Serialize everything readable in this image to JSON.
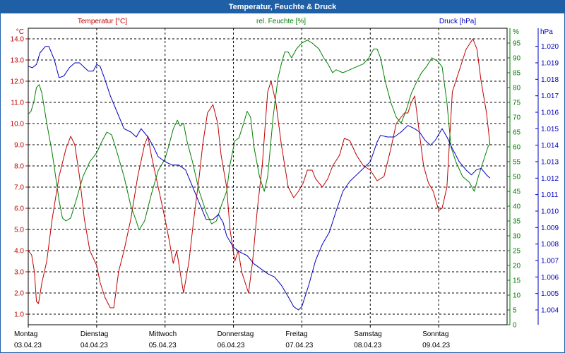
{
  "window": {
    "title": "Temperatur, Feuchte & Druck"
  },
  "colors": {
    "temperature": "#c00000",
    "humidity": "#008000",
    "pressure": "#0000c0",
    "title_bar": "#1f5fa6",
    "grid": "#000000"
  },
  "chart_data": {
    "type": "line",
    "title": "Temperatur, Feuchte & Druck",
    "x_range_days": [
      0,
      7
    ],
    "days": [
      {
        "name": "Montag",
        "date": "03.04.23"
      },
      {
        "name": "Dienstag",
        "date": "04.04.23"
      },
      {
        "name": "Mittwoch",
        "date": "05.04.23"
      },
      {
        "name": "Donnerstag",
        "date": "06.04.23"
      },
      {
        "name": "Freitag",
        "date": "07.04.23"
      },
      {
        "name": "Samstag",
        "date": "08.04.23"
      },
      {
        "name": "Sonntag",
        "date": "09.04.23"
      }
    ],
    "axes": {
      "temperature": {
        "label": "Temperatur [°C]",
        "unit": "°C",
        "range": [
          0.5,
          14.5
        ],
        "ticks": [
          "1.0",
          "2.0",
          "3.0",
          "4.0",
          "5.0",
          "6.0",
          "7.0",
          "8.0",
          "9.0",
          "10.0",
          "11.0",
          "12.0",
          "13.0",
          "14.0"
        ]
      },
      "humidity": {
        "label": "rel. Feuchte [%]",
        "unit": "%",
        "range": [
          0,
          100
        ],
        "ticks": [
          "0",
          "5",
          "10",
          "15",
          "20",
          "25",
          "30",
          "35",
          "40",
          "45",
          "50",
          "55",
          "60",
          "65",
          "70",
          "75",
          "80",
          "85",
          "90",
          "95"
        ]
      },
      "pressure": {
        "label": "Druck [hPa]",
        "unit": "hPa",
        "range": [
          1.0031,
          1.0211
        ],
        "ticks": [
          "1.004",
          "1.005",
          "1.006",
          "1.007",
          "1.008",
          "1.009",
          "1.010",
          "1.011",
          "1.012",
          "1.013",
          "1.014",
          "1.015",
          "1.016",
          "1.017",
          "1.018",
          "1.019",
          "1.020"
        ]
      }
    },
    "series": [
      {
        "name": "Temperatur",
        "axis": "temperature",
        "points": [
          [
            0,
            4.0
          ],
          [
            0.05,
            3.8
          ],
          [
            0.09,
            3.0
          ],
          [
            0.12,
            1.6
          ],
          [
            0.15,
            1.5
          ],
          [
            0.2,
            2.5
          ],
          [
            0.27,
            3.5
          ],
          [
            0.35,
            5.5
          ],
          [
            0.45,
            7.5
          ],
          [
            0.55,
            8.8
          ],
          [
            0.62,
            9.4
          ],
          [
            0.68,
            9.0
          ],
          [
            0.75,
            7.5
          ],
          [
            0.82,
            5.5
          ],
          [
            0.9,
            4.0
          ],
          [
            1.0,
            3.3
          ],
          [
            1.05,
            2.5
          ],
          [
            1.12,
            1.8
          ],
          [
            1.2,
            1.3
          ],
          [
            1.25,
            1.3
          ],
          [
            1.32,
            3.0
          ],
          [
            1.4,
            4.0
          ],
          [
            1.5,
            5.5
          ],
          [
            1.6,
            7.5
          ],
          [
            1.7,
            9.0
          ],
          [
            1.75,
            9.4
          ],
          [
            1.8,
            8.5
          ],
          [
            1.9,
            7.0
          ],
          [
            2.0,
            5.5
          ],
          [
            2.06,
            4.5
          ],
          [
            2.12,
            3.4
          ],
          [
            2.17,
            4.0
          ],
          [
            2.22,
            3.0
          ],
          [
            2.27,
            2.0
          ],
          [
            2.35,
            3.5
          ],
          [
            2.42,
            5.5
          ],
          [
            2.5,
            7.5
          ],
          [
            2.55,
            9.0
          ],
          [
            2.62,
            10.5
          ],
          [
            2.7,
            10.9
          ],
          [
            2.77,
            10.0
          ],
          [
            2.82,
            8.5
          ],
          [
            2.9,
            7.0
          ],
          [
            2.95,
            5.0
          ],
          [
            3.02,
            3.5
          ],
          [
            3.07,
            4.0
          ],
          [
            3.12,
            3.0
          ],
          [
            3.17,
            2.5
          ],
          [
            3.22,
            2.0
          ],
          [
            3.28,
            3.5
          ],
          [
            3.35,
            6.0
          ],
          [
            3.42,
            8.0
          ],
          [
            3.5,
            11.5
          ],
          [
            3.55,
            12.0
          ],
          [
            3.62,
            11.0
          ],
          [
            3.7,
            9.0
          ],
          [
            3.8,
            7.0
          ],
          [
            3.88,
            6.5
          ],
          [
            3.95,
            6.8
          ],
          [
            4.02,
            7.2
          ],
          [
            4.08,
            7.8
          ],
          [
            4.15,
            7.8
          ],
          [
            4.2,
            7.4
          ],
          [
            4.3,
            7.0
          ],
          [
            4.38,
            7.4
          ],
          [
            4.45,
            8.0
          ],
          [
            4.55,
            8.5
          ],
          [
            4.62,
            9.3
          ],
          [
            4.7,
            9.2
          ],
          [
            4.8,
            8.5
          ],
          [
            4.9,
            8.0
          ],
          [
            5.0,
            7.8
          ],
          [
            5.1,
            7.3
          ],
          [
            5.2,
            7.5
          ],
          [
            5.3,
            8.8
          ],
          [
            5.38,
            10.0
          ],
          [
            5.45,
            10.3
          ],
          [
            5.5,
            10.5
          ],
          [
            5.55,
            10.5
          ],
          [
            5.6,
            11.0
          ],
          [
            5.65,
            11.3
          ],
          [
            5.72,
            9.5
          ],
          [
            5.78,
            8.0
          ],
          [
            5.85,
            7.2
          ],
          [
            5.92,
            6.8
          ],
          [
            6.0,
            5.9
          ],
          [
            6.05,
            6.0
          ],
          [
            6.12,
            7.0
          ],
          [
            6.2,
            11.5
          ],
          [
            6.3,
            12.5
          ],
          [
            6.4,
            13.5
          ],
          [
            6.5,
            14.0
          ],
          [
            6.56,
            13.5
          ],
          [
            6.62,
            12.0
          ],
          [
            6.7,
            10.5
          ],
          [
            6.75,
            9.0
          ]
        ]
      },
      {
        "name": "rel. Feuchte",
        "axis": "humidity",
        "points": [
          [
            0,
            71
          ],
          [
            0.04,
            72
          ],
          [
            0.08,
            75
          ],
          [
            0.12,
            80
          ],
          [
            0.16,
            81
          ],
          [
            0.2,
            78
          ],
          [
            0.27,
            68
          ],
          [
            0.35,
            58
          ],
          [
            0.45,
            42
          ],
          [
            0.5,
            36
          ],
          [
            0.55,
            35
          ],
          [
            0.62,
            36
          ],
          [
            0.7,
            42
          ],
          [
            0.8,
            50
          ],
          [
            0.9,
            55
          ],
          [
            1.0,
            58
          ],
          [
            1.08,
            62
          ],
          [
            1.15,
            65
          ],
          [
            1.22,
            64
          ],
          [
            1.3,
            58
          ],
          [
            1.4,
            50
          ],
          [
            1.5,
            40
          ],
          [
            1.58,
            35
          ],
          [
            1.62,
            32
          ],
          [
            1.7,
            35
          ],
          [
            1.8,
            44
          ],
          [
            1.9,
            52
          ],
          [
            2.0,
            56
          ],
          [
            2.05,
            60
          ],
          [
            2.12,
            66
          ],
          [
            2.18,
            69
          ],
          [
            2.22,
            67
          ],
          [
            2.27,
            68
          ],
          [
            2.32,
            62
          ],
          [
            2.4,
            55
          ],
          [
            2.5,
            45
          ],
          [
            2.6,
            38
          ],
          [
            2.68,
            34
          ],
          [
            2.75,
            35
          ],
          [
            2.82,
            40
          ],
          [
            2.9,
            45
          ],
          [
            2.95,
            54
          ],
          [
            3.02,
            62
          ],
          [
            3.08,
            63
          ],
          [
            3.15,
            68
          ],
          [
            3.2,
            72
          ],
          [
            3.25,
            70
          ],
          [
            3.3,
            60
          ],
          [
            3.38,
            50
          ],
          [
            3.45,
            45
          ],
          [
            3.5,
            50
          ],
          [
            3.58,
            70
          ],
          [
            3.65,
            83
          ],
          [
            3.7,
            88
          ],
          [
            3.75,
            92
          ],
          [
            3.8,
            92
          ],
          [
            3.85,
            90
          ],
          [
            3.92,
            93
          ],
          [
            4.0,
            95
          ],
          [
            4.08,
            96
          ],
          [
            4.15,
            95
          ],
          [
            4.25,
            93
          ],
          [
            4.32,
            90
          ],
          [
            4.38,
            88
          ],
          [
            4.45,
            85
          ],
          [
            4.5,
            86
          ],
          [
            4.6,
            85
          ],
          [
            4.7,
            86
          ],
          [
            4.8,
            87
          ],
          [
            4.9,
            88
          ],
          [
            4.98,
            90
          ],
          [
            5.05,
            93
          ],
          [
            5.1,
            93
          ],
          [
            5.15,
            90
          ],
          [
            5.22,
            82
          ],
          [
            5.3,
            75
          ],
          [
            5.38,
            70
          ],
          [
            5.45,
            68
          ],
          [
            5.52,
            72
          ],
          [
            5.6,
            78
          ],
          [
            5.68,
            82
          ],
          [
            5.75,
            85
          ],
          [
            5.82,
            87
          ],
          [
            5.9,
            90
          ],
          [
            5.98,
            89
          ],
          [
            6.05,
            87
          ],
          [
            6.12,
            75
          ],
          [
            6.18,
            60
          ],
          [
            6.25,
            55
          ],
          [
            6.35,
            50
          ],
          [
            6.45,
            48
          ],
          [
            6.52,
            45
          ],
          [
            6.58,
            50
          ],
          [
            6.65,
            55
          ],
          [
            6.72,
            60
          ],
          [
            6.75,
            61
          ]
        ]
      },
      {
        "name": "Druck",
        "axis": "pressure",
        "points": [
          [
            0,
            1.0188
          ],
          [
            0.06,
            1.0187
          ],
          [
            0.12,
            1.0189
          ],
          [
            0.17,
            1.0196
          ],
          [
            0.25,
            1.02
          ],
          [
            0.3,
            1.02
          ],
          [
            0.38,
            1.0192
          ],
          [
            0.45,
            1.0181
          ],
          [
            0.52,
            1.0182
          ],
          [
            0.6,
            1.0187
          ],
          [
            0.68,
            1.019
          ],
          [
            0.75,
            1.019
          ],
          [
            0.8,
            1.0188
          ],
          [
            0.88,
            1.0185
          ],
          [
            0.95,
            1.0185
          ],
          [
            1.0,
            1.0189
          ],
          [
            1.05,
            1.0188
          ],
          [
            1.12,
            1.018
          ],
          [
            1.2,
            1.017
          ],
          [
            1.3,
            1.016
          ],
          [
            1.4,
            1.015
          ],
          [
            1.5,
            1.0148
          ],
          [
            1.58,
            1.0145
          ],
          [
            1.65,
            1.015
          ],
          [
            1.75,
            1.0145
          ],
          [
            1.82,
            1.014
          ],
          [
            1.9,
            1.0133
          ],
          [
            2.0,
            1.013
          ],
          [
            2.1,
            1.0128
          ],
          [
            2.2,
            1.0128
          ],
          [
            2.3,
            1.0125
          ],
          [
            2.4,
            1.0115
          ],
          [
            2.5,
            1.0105
          ],
          [
            2.6,
            1.0095
          ],
          [
            2.7,
            1.0095
          ],
          [
            2.78,
            1.0098
          ],
          [
            2.85,
            1.0093
          ],
          [
            2.9,
            1.0085
          ],
          [
            3.0,
            1.0078
          ],
          [
            3.1,
            1.0075
          ],
          [
            3.2,
            1.0073
          ],
          [
            3.3,
            1.0068
          ],
          [
            3.4,
            1.0065
          ],
          [
            3.5,
            1.0062
          ],
          [
            3.6,
            1.006
          ],
          [
            3.7,
            1.0055
          ],
          [
            3.8,
            1.0048
          ],
          [
            3.88,
            1.0042
          ],
          [
            3.95,
            1.004
          ],
          [
            4.0,
            1.0042
          ],
          [
            4.1,
            1.0055
          ],
          [
            4.2,
            1.007
          ],
          [
            4.3,
            1.008
          ],
          [
            4.4,
            1.0087
          ],
          [
            4.5,
            1.01
          ],
          [
            4.6,
            1.0112
          ],
          [
            4.7,
            1.0118
          ],
          [
            4.8,
            1.0122
          ],
          [
            4.9,
            1.0126
          ],
          [
            5.0,
            1.013
          ],
          [
            5.1,
            1.0142
          ],
          [
            5.15,
            1.0146
          ],
          [
            5.25,
            1.0145
          ],
          [
            5.35,
            1.0145
          ],
          [
            5.45,
            1.0148
          ],
          [
            5.55,
            1.0152
          ],
          [
            5.65,
            1.015
          ],
          [
            5.72,
            1.0148
          ],
          [
            5.8,
            1.0143
          ],
          [
            5.88,
            1.014
          ],
          [
            5.95,
            1.0143
          ],
          [
            6.05,
            1.015
          ],
          [
            6.12,
            1.0145
          ],
          [
            6.2,
            1.0138
          ],
          [
            6.3,
            1.013
          ],
          [
            6.4,
            1.0125
          ],
          [
            6.48,
            1.0122
          ],
          [
            6.55,
            1.0125
          ],
          [
            6.62,
            1.0126
          ],
          [
            6.7,
            1.0122
          ],
          [
            6.75,
            1.012
          ]
        ]
      }
    ]
  }
}
